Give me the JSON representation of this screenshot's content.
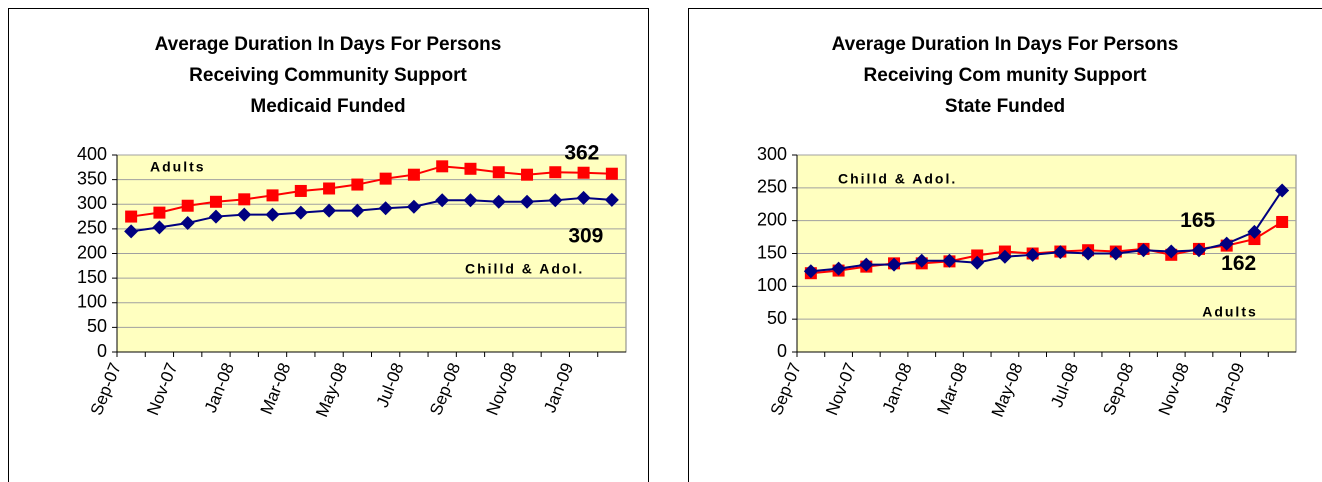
{
  "chart_data": [
    {
      "type": "line",
      "title": [
        "Average Duration In Days For Persons",
        "Receiving Community Support",
        "Medicaid Funded"
      ],
      "categories": [
        "Sep-07",
        null,
        "Nov-07",
        null,
        "Jan-08",
        null,
        "Mar-08",
        null,
        "May-08",
        null,
        "Jul-08",
        null,
        "Sep-08",
        null,
        "Nov-08",
        null,
        "Jan-09",
        null
      ],
      "series": [
        {
          "name": "Adults",
          "color": "#ff0000",
          "marker": "square",
          "values": [
            275,
            283,
            297,
            305,
            310,
            318,
            327,
            332,
            340,
            352,
            360,
            377,
            372,
            365,
            360,
            365,
            364,
            362
          ],
          "value_labels": [
            null,
            null,
            null,
            null,
            null,
            null,
            null,
            null,
            null,
            null,
            null,
            null,
            null,
            null,
            null,
            null,
            null,
            "362"
          ]
        },
        {
          "name": "Chilld & Adol.",
          "color": "#000080",
          "marker": "diamond",
          "values": [
            245,
            253,
            262,
            275,
            279,
            279,
            283,
            287,
            287,
            292,
            295,
            308,
            308,
            305,
            305,
            308,
            313,
            309
          ],
          "value_labels": [
            null,
            null,
            null,
            null,
            null,
            null,
            null,
            null,
            null,
            null,
            null,
            null,
            null,
            null,
            null,
            null,
            null,
            "309"
          ]
        }
      ],
      "ylim": [
        0,
        400
      ],
      "yticks": [
        0,
        50,
        100,
        150,
        200,
        250,
        300,
        350,
        400
      ],
      "grid": true
    },
    {
      "type": "line",
      "title": [
        "Average Duration In Days For Persons",
        "Receiving Com munity Support",
        "State Funded"
      ],
      "categories": [
        "Sep-07",
        null,
        "Nov-07",
        null,
        "Jan-08",
        null,
        "Mar-08",
        null,
        "May-08",
        null,
        "Jul-08",
        null,
        "Sep-08",
        null,
        "Nov-08",
        null,
        "Jan-09",
        null
      ],
      "series": [
        {
          "name": "Adults",
          "color": "#ff0000",
          "marker": "square",
          "values": [
            120,
            124,
            130,
            135,
            135,
            138,
            147,
            153,
            150,
            153,
            155,
            153,
            157,
            148,
            157,
            162,
            172,
            198
          ],
          "value_labels": [
            null,
            null,
            null,
            null,
            null,
            null,
            null,
            null,
            null,
            null,
            null,
            null,
            null,
            null,
            null,
            "162",
            null,
            null
          ]
        },
        {
          "name": "Chilld & Adol.",
          "color": "#000080",
          "marker": "diamond",
          "values": [
            123,
            127,
            133,
            133,
            139,
            139,
            136,
            145,
            148,
            152,
            150,
            150,
            155,
            153,
            155,
            165,
            183,
            246
          ],
          "value_labels": [
            null,
            null,
            null,
            null,
            null,
            null,
            null,
            null,
            null,
            null,
            null,
            null,
            null,
            null,
            null,
            "165",
            null,
            null
          ]
        }
      ],
      "ylim": [
        0,
        300
      ],
      "yticks": [
        0,
        50,
        100,
        150,
        200,
        250,
        300
      ],
      "grid": true
    }
  ]
}
